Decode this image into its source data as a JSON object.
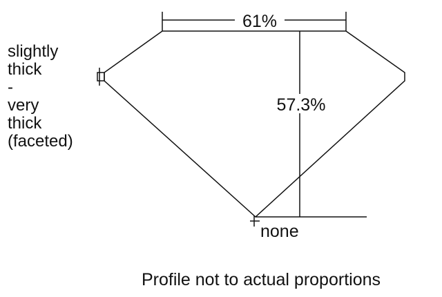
{
  "labels": {
    "table_width": "61%",
    "total_depth": "57.3%",
    "culet": "none",
    "girdle_lines": [
      "slightly",
      "thick",
      "-",
      "very",
      "thick",
      "(faceted)"
    ],
    "note": "Profile not to actual proportions"
  },
  "colors": {
    "stroke": "#111111",
    "background": "#ffffff"
  }
}
